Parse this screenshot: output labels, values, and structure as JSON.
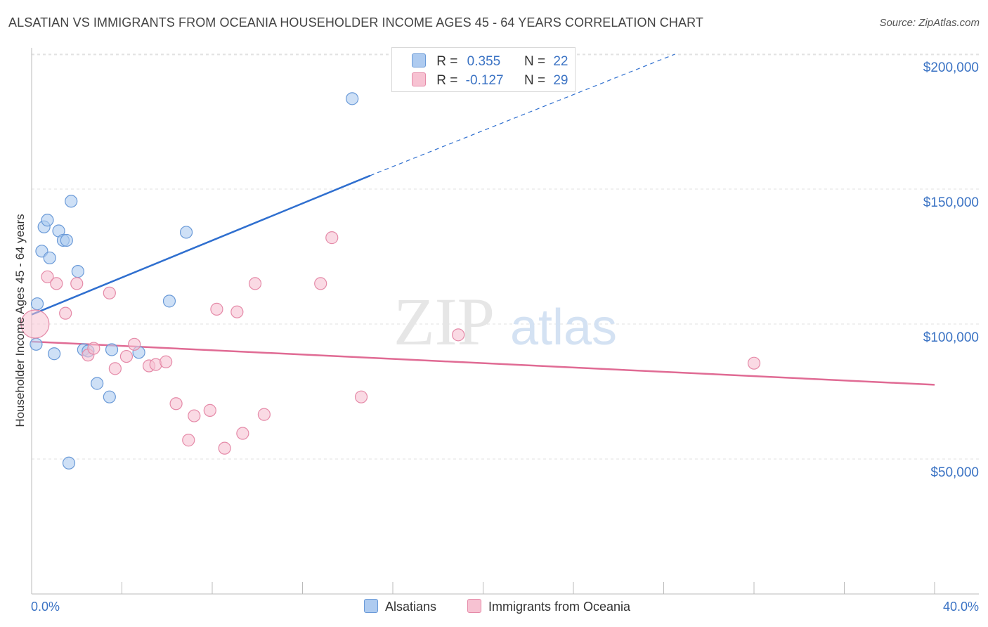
{
  "title": "ALSATIAN VS IMMIGRANTS FROM OCEANIA HOUSEHOLDER INCOME AGES 45 - 64 YEARS CORRELATION CHART",
  "source": "Source: ZipAtlas.com",
  "watermark": {
    "zip": "ZIP",
    "atlas": "atlas"
  },
  "legend": {
    "rows": [
      {
        "r_label": "R =",
        "r_value": "0.355",
        "n_label": "N =",
        "n_value": "22"
      },
      {
        "r_label": "R =",
        "r_value": "-0.127",
        "n_label": "N =",
        "n_value": "29"
      }
    ]
  },
  "bottom_legend": {
    "series1": "Alsatians",
    "series2": "Immigrants from Oceania"
  },
  "colors": {
    "blue_fill": "#aecbf0",
    "blue_stroke": "#6a9ad8",
    "blue_line": "#2f6fcf",
    "pink_fill": "#f7c2d2",
    "pink_stroke": "#e58aa8",
    "pink_line": "#e06b94",
    "axis_text": "#3b73c4",
    "grid": "#e2e2e2"
  },
  "chart_data": {
    "type": "scatter",
    "title": "ALSATIAN VS IMMIGRANTS FROM OCEANIA HOUSEHOLDER INCOME AGES 45 - 64 YEARS CORRELATION CHART",
    "xlabel": "",
    "ylabel": "Householder Income Ages 45 - 64 years",
    "xlim": [
      0,
      40
    ],
    "ylim": [
      0,
      205000
    ],
    "x_tick_labels": [
      "0.0%",
      "40.0%"
    ],
    "y_ticks": [
      {
        "value": 50000,
        "label": "$50,000"
      },
      {
        "value": 100000,
        "label": "$100,000"
      },
      {
        "value": 150000,
        "label": "$150,000"
      },
      {
        "value": 200000,
        "label": "$200,000"
      }
    ],
    "series": [
      {
        "name": "Alsatians",
        "color": "blue",
        "r": 0.355,
        "n": 22,
        "points": [
          [
            0.2,
            92500
          ],
          [
            0.25,
            107500
          ],
          [
            0.45,
            127000
          ],
          [
            0.55,
            136000
          ],
          [
            0.7,
            138500
          ],
          [
            0.8,
            124500
          ],
          [
            1.0,
            89000
          ],
          [
            1.2,
            134500
          ],
          [
            1.4,
            131000
          ],
          [
            1.55,
            131000
          ],
          [
            1.75,
            145500
          ],
          [
            2.05,
            119500
          ],
          [
            2.3,
            90500
          ],
          [
            2.5,
            90000
          ],
          [
            2.9,
            78000
          ],
          [
            3.45,
            73000
          ],
          [
            3.55,
            90500
          ],
          [
            4.75,
            89500
          ],
          [
            6.1,
            108500
          ],
          [
            6.85,
            134000
          ],
          [
            14.2,
            183500
          ],
          [
            1.65,
            48500
          ]
        ],
        "trend": {
          "x0": 0,
          "y0": 103500,
          "x1": 15,
          "y1": 155000,
          "dash_to_x": 28.5,
          "dash_to_y": 200000
        }
      },
      {
        "name": "Immigrants from Oceania",
        "color": "pink",
        "r": -0.127,
        "n": 29,
        "points": [
          [
            0.15,
            100000
          ],
          [
            0.7,
            117500
          ],
          [
            1.1,
            115000
          ],
          [
            1.5,
            104000
          ],
          [
            2.0,
            115000
          ],
          [
            2.5,
            88500
          ],
          [
            2.75,
            91000
          ],
          [
            3.45,
            111500
          ],
          [
            3.7,
            83500
          ],
          [
            4.2,
            88000
          ],
          [
            4.55,
            92500
          ],
          [
            5.2,
            84500
          ],
          [
            5.5,
            85000
          ],
          [
            5.95,
            86000
          ],
          [
            6.4,
            70500
          ],
          [
            6.95,
            57000
          ],
          [
            7.2,
            66000
          ],
          [
            7.9,
            68000
          ],
          [
            8.2,
            105500
          ],
          [
            8.55,
            54000
          ],
          [
            9.1,
            104500
          ],
          [
            9.35,
            59500
          ],
          [
            9.9,
            115000
          ],
          [
            10.3,
            66500
          ],
          [
            12.8,
            115000
          ],
          [
            13.3,
            132000
          ],
          [
            14.6,
            73000
          ],
          [
            18.9,
            96000
          ],
          [
            32.0,
            85500
          ]
        ],
        "trend": {
          "x0": 0,
          "y0": 93500,
          "x1": 40,
          "y1": 77500
        }
      }
    ]
  }
}
